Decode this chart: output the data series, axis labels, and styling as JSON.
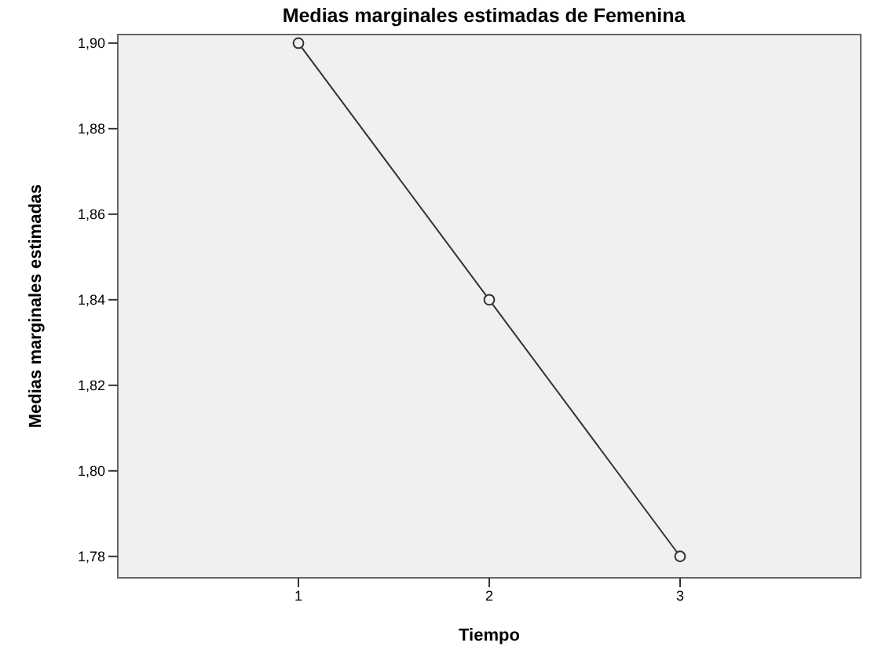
{
  "chart_data": {
    "type": "line",
    "title": "Medias marginales estimadas de Femenina",
    "xlabel": "Tiempo",
    "ylabel": "Medias marginales estimadas",
    "categories": [
      "1",
      "2",
      "3"
    ],
    "series": [
      {
        "color": "#333333",
        "values": [
          1.9,
          1.84,
          1.78
        ]
      }
    ],
    "ylim": [
      1.775,
      1.902
    ],
    "yticks": [
      {
        "value": 1.78,
        "label": "1,78"
      },
      {
        "value": 1.8,
        "label": "1,80"
      },
      {
        "value": 1.82,
        "label": "1,82"
      },
      {
        "value": 1.84,
        "label": "1,84"
      },
      {
        "value": 1.86,
        "label": "1,86"
      },
      {
        "value": 1.88,
        "label": "1,88"
      },
      {
        "value": 1.9,
        "label": "1,90"
      }
    ],
    "marker": "circle",
    "line_style": "solid",
    "legend": false
  }
}
